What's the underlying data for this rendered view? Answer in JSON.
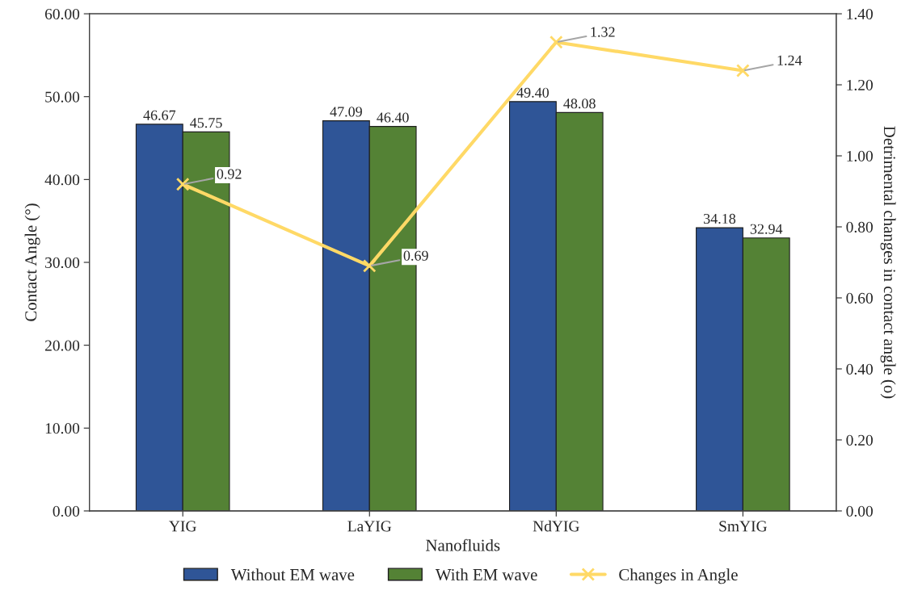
{
  "chart_data": {
    "type": "bar",
    "xlabel": "Nanofluids",
    "ylabel": "Contact Angle (°)",
    "y2label": "Detrimental changes in contact angle (o)",
    "categories": [
      "YIG",
      "LaYIG",
      "NdYIG",
      "SmYIG"
    ],
    "series": [
      {
        "name": "Without EM wave",
        "color": "#2f5597",
        "values": [
          46.67,
          47.09,
          49.4,
          34.18
        ],
        "value_labels": [
          "46.67",
          "47.09",
          "49.40",
          "34.18"
        ]
      },
      {
        "name": "With EM wave",
        "color": "#548235",
        "values": [
          45.75,
          46.4,
          48.08,
          32.94
        ],
        "value_labels": [
          "45.75",
          "46.40",
          "48.08",
          "32.94"
        ]
      },
      {
        "name": "Changes in Angle",
        "type": "line",
        "axis": "y2",
        "color": "#ffd966",
        "marker": "cross",
        "values": [
          0.92,
          0.69,
          1.32,
          1.24
        ],
        "value_labels": [
          "0.92",
          "0.69",
          "1.32",
          "1.24"
        ]
      }
    ],
    "ylim": [
      0,
      60
    ],
    "yticks": [
      {
        "value": 0,
        "label": "0.00"
      },
      {
        "value": 10,
        "label": "10.00"
      },
      {
        "value": 20,
        "label": "20.00"
      },
      {
        "value": 30,
        "label": "30.00"
      },
      {
        "value": 40,
        "label": "40.00"
      },
      {
        "value": 50,
        "label": "50.00"
      },
      {
        "value": 60,
        "label": "60.00"
      }
    ],
    "y2lim": [
      0,
      1.4
    ],
    "y2ticks": [
      {
        "value": 0,
        "label": "0.00"
      },
      {
        "value": 0.2,
        "label": "0.20"
      },
      {
        "value": 0.4,
        "label": "0.40"
      },
      {
        "value": 0.6,
        "label": "0.60"
      },
      {
        "value": 0.8,
        "label": "0.80"
      },
      {
        "value": 1.0,
        "label": "1.00"
      },
      {
        "value": 1.2,
        "label": "1.20"
      },
      {
        "value": 1.4,
        "label": "1.40"
      }
    ],
    "legend": "bottom",
    "grid": false
  }
}
